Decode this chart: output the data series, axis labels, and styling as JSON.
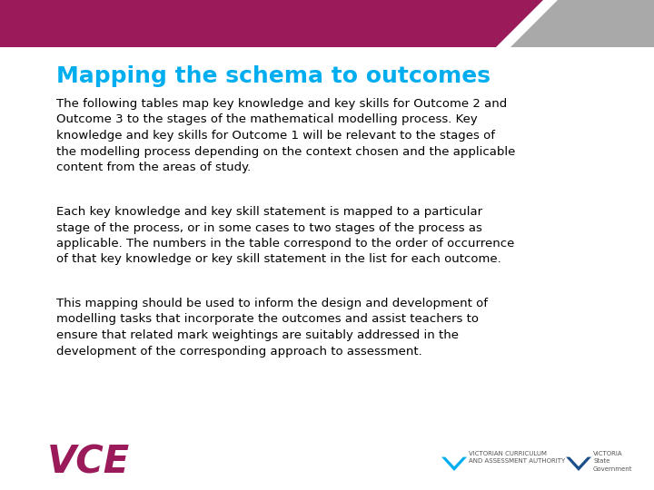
{
  "title": "Mapping the schema to outcomes",
  "title_color": "#00AEEF",
  "title_fontsize": 18,
  "body_color": "#000000",
  "body_fontsize": 9.5,
  "background_color": "#FFFFFF",
  "header_bar_color": "#9B1B5A",
  "header_gray_color": "#A9A9A9",
  "vce_color": "#9B1B5A",
  "paragraph1": "The following tables map key knowledge and key skills for Outcome 2 and\nOutcome 3 to the stages of the mathematical modelling process. Key\nknowledge and key skills for Outcome 1 will be relevant to the stages of\nthe modelling process depending on the context chosen and the applicable\ncontent from the areas of study.",
  "paragraph2": "Each key knowledge and key skill statement is mapped to a particular\nstage of the process, or in some cases to two stages of the process as\napplicable. The numbers in the table correspond to the order of occurrence\nof that key knowledge or key skill statement in the list for each outcome.",
  "paragraph3": "This mapping should be used to inform the design and development of\nmodelling tasks that incorporate the outcomes and assist teachers to\nensure that related mark weightings are suitably addressed in the\ndevelopment of the corresponding approach to assessment.",
  "vce_text": "VCE",
  "vcaa_line1": "VICTORIAN CURRICULUM",
  "vcaa_line2": "AND ASSESSMENT AUTHORITY"
}
